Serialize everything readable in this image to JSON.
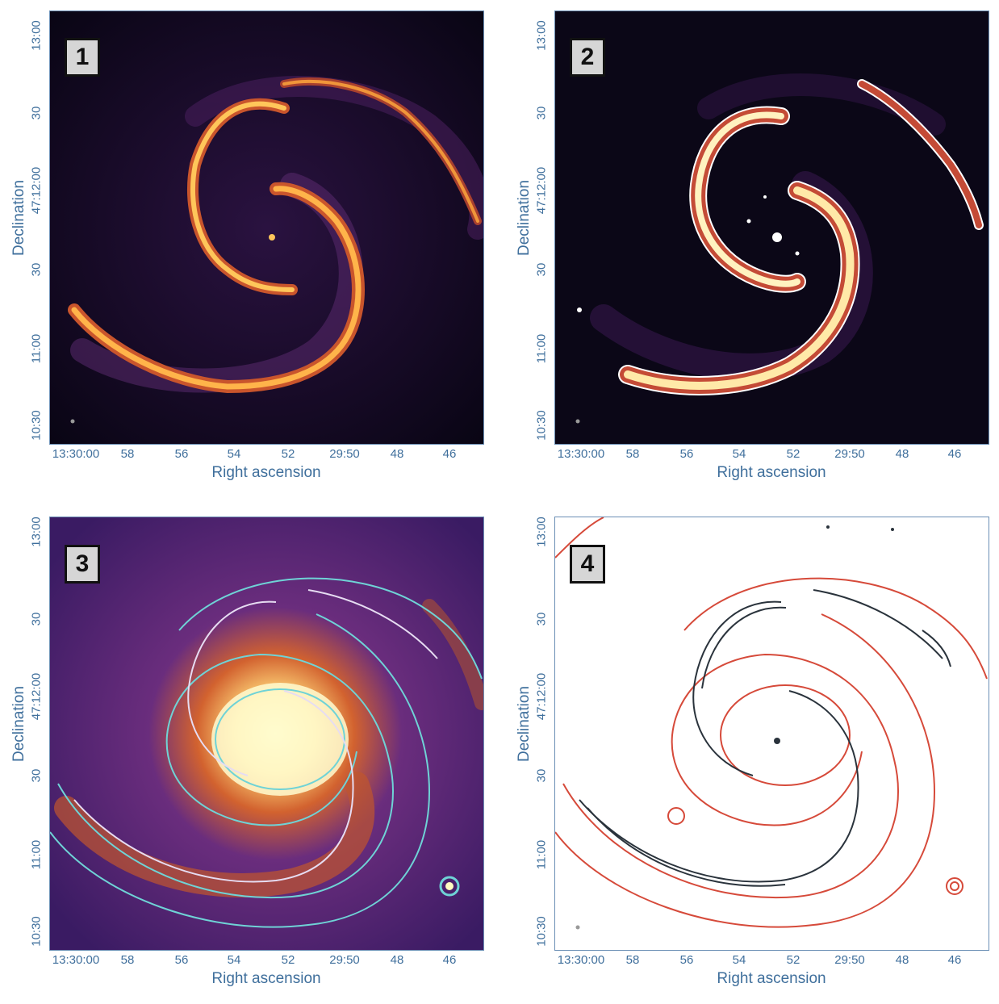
{
  "panels": [
    {
      "badge": "1",
      "xlabel": "Right ascension",
      "ylabel": "Declination",
      "style": "dark"
    },
    {
      "badge": "2",
      "xlabel": "Right ascension",
      "ylabel": "Declination",
      "style": "dark-contour"
    },
    {
      "badge": "3",
      "xlabel": "Right ascension",
      "ylabel": "Declination",
      "style": "optical"
    },
    {
      "badge": "4",
      "xlabel": "Right ascension",
      "ylabel": "Declination",
      "style": "contour"
    }
  ],
  "xticks": [
    "13:30:00",
    "58",
    "56",
    "54",
    "52",
    "29:50",
    "48",
    "46"
  ],
  "yticks": [
    "13:00",
    "30",
    "47:12:00",
    "30",
    "11:00",
    "10:30"
  ],
  "colors": {
    "axis": "#3f6f9c",
    "bg_dark": "#0b0717",
    "arm_bright": "#ffc65a",
    "arm_mid": "#e0702e",
    "contour_white": "#ffffff",
    "contour_cyan": "#6fd3d6",
    "contour_red": "#d64a3a",
    "contour_black": "#2a333c"
  }
}
